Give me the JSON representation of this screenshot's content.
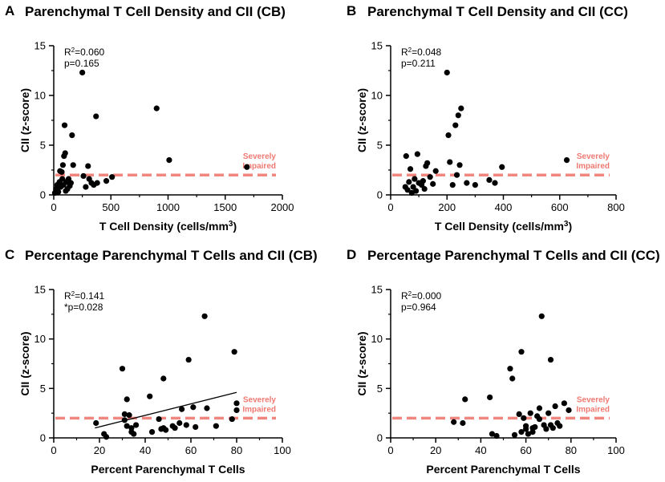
{
  "colors": {
    "points": "#000000",
    "threshold_line": "#f07a72",
    "threshold_text": "#f07a72",
    "axis": "#000000"
  },
  "chart_data": [
    {
      "panel_label": "A",
      "type": "scatter",
      "title": "Parenchymal T Cell Density and CII (CB)",
      "xlabel": "T Cell Density (cells/mm",
      "xlabel_sup": "3",
      "xlabel_end": ")",
      "ylabel": "CII (z-score)",
      "xlim": [
        0,
        2000
      ],
      "ylim": [
        0,
        15
      ],
      "xticks": [
        0,
        500,
        1000,
        1500,
        2000
      ],
      "yticks": [
        0,
        5,
        10,
        15
      ],
      "stat_r2_prefix": "R",
      "stat_r2_sup": "2",
      "stat_r2_value": "=0.060",
      "stat_p": "p=0.165",
      "threshold": 2,
      "threshold_label_1": "Severely",
      "threshold_label_2": "Impaired",
      "fit_line": null,
      "points": [
        [
          10,
          0.2
        ],
        [
          20,
          0.6
        ],
        [
          30,
          1.0
        ],
        [
          40,
          0.3
        ],
        [
          50,
          1.3
        ],
        [
          55,
          2.4
        ],
        [
          60,
          0.8
        ],
        [
          70,
          2.3
        ],
        [
          75,
          1.6
        ],
        [
          80,
          3.0
        ],
        [
          85,
          1.0
        ],
        [
          90,
          3.9
        ],
        [
          95,
          7.0
        ],
        [
          100,
          4.2
        ],
        [
          105,
          0.4
        ],
        [
          110,
          1.3
        ],
        [
          120,
          0.6
        ],
        [
          130,
          1.6
        ],
        [
          140,
          0.9
        ],
        [
          150,
          1.2
        ],
        [
          160,
          6.0
        ],
        [
          170,
          3.0
        ],
        [
          260,
          1.9
        ],
        [
          250,
          12.3
        ],
        [
          280,
          0.8
        ],
        [
          300,
          2.9
        ],
        [
          310,
          1.6
        ],
        [
          330,
          1.2
        ],
        [
          350,
          1.0
        ],
        [
          370,
          7.9
        ],
        [
          380,
          1.2
        ],
        [
          460,
          1.4
        ],
        [
          510,
          1.8
        ],
        [
          900,
          8.7
        ],
        [
          1010,
          3.5
        ],
        [
          1690,
          2.8
        ]
      ]
    },
    {
      "panel_label": "B",
      "type": "scatter",
      "title": "Parenchymal T Cell Density and CII (CC)",
      "xlabel": "T Cell Density (cells/mm",
      "xlabel_sup": "3",
      "xlabel_end": ")",
      "ylabel": "CII (z-score)",
      "xlim": [
        0,
        800
      ],
      "ylim": [
        0,
        15
      ],
      "xticks": [
        0,
        200,
        400,
        600,
        800
      ],
      "yticks": [
        0,
        5,
        10,
        15
      ],
      "stat_r2_prefix": "R",
      "stat_r2_sup": "2",
      "stat_r2_value": "=0.048",
      "stat_p": "p=0.211",
      "threshold": 2,
      "threshold_label_1": "Severely",
      "threshold_label_2": "Impaired",
      "fit_line": null,
      "points": [
        [
          52,
          0.8
        ],
        [
          55,
          3.9
        ],
        [
          60,
          0.5
        ],
        [
          65,
          1.3
        ],
        [
          70,
          2.6
        ],
        [
          75,
          0.2
        ],
        [
          80,
          0.8
        ],
        [
          85,
          1.6
        ],
        [
          90,
          0.4
        ],
        [
          95,
          4.1
        ],
        [
          100,
          1.2
        ],
        [
          110,
          1.0
        ],
        [
          115,
          1.4
        ],
        [
          120,
          0.6
        ],
        [
          125,
          2.9
        ],
        [
          130,
          3.2
        ],
        [
          140,
          1.8
        ],
        [
          150,
          1.1
        ],
        [
          160,
          2.4
        ],
        [
          200,
          12.3
        ],
        [
          205,
          6.0
        ],
        [
          210,
          3.3
        ],
        [
          220,
          1.0
        ],
        [
          230,
          7.0
        ],
        [
          235,
          2.0
        ],
        [
          240,
          8.0
        ],
        [
          245,
          3.0
        ],
        [
          250,
          8.7
        ],
        [
          270,
          1.2
        ],
        [
          300,
          1.0
        ],
        [
          350,
          1.5
        ],
        [
          370,
          1.2
        ],
        [
          395,
          2.8
        ],
        [
          625,
          3.5
        ]
      ]
    },
    {
      "panel_label": "C",
      "type": "scatter",
      "title": "Percentage Parenchymal T Cells and CII (CB)",
      "xlabel": "Percent Parenchymal T Cells",
      "xlabel_sup": "",
      "xlabel_end": "",
      "ylabel": "CII (z-score)",
      "xlim": [
        0,
        100
      ],
      "ylim": [
        0,
        15
      ],
      "xticks": [
        0,
        20,
        40,
        60,
        80,
        100
      ],
      "yticks": [
        0,
        5,
        10,
        15
      ],
      "stat_r2_prefix": "R",
      "stat_r2_sup": "2",
      "stat_r2_value": "=0.141",
      "stat_p": "*p=0.028",
      "threshold": 2,
      "threshold_label_1": "Severely",
      "threshold_label_2": "Impaired",
      "fit_line": [
        [
          18,
          1.0
        ],
        [
          80,
          4.6
        ]
      ],
      "points": [
        [
          18.5,
          1.5
        ],
        [
          22,
          0.4
        ],
        [
          23,
          0.1
        ],
        [
          30,
          7.0
        ],
        [
          31,
          1.8
        ],
        [
          31,
          2.4
        ],
        [
          32,
          1.2
        ],
        [
          32,
          3.9
        ],
        [
          33,
          2.3
        ],
        [
          34,
          1.0
        ],
        [
          34,
          0.6
        ],
        [
          35,
          0.4
        ],
        [
          36,
          1.3
        ],
        [
          42,
          4.2
        ],
        [
          43,
          0.6
        ],
        [
          46,
          1.9
        ],
        [
          47,
          0.9
        ],
        [
          48,
          1.0
        ],
        [
          48,
          6.0
        ],
        [
          49,
          0.8
        ],
        [
          52,
          1.2
        ],
        [
          53,
          1.0
        ],
        [
          55,
          1.5
        ],
        [
          56,
          2.9
        ],
        [
          58,
          1.3
        ],
        [
          59,
          7.9
        ],
        [
          61,
          3.1
        ],
        [
          62,
          1.1
        ],
        [
          66,
          12.3
        ],
        [
          67,
          3.0
        ],
        [
          71,
          1.2
        ],
        [
          78,
          1.9
        ],
        [
          79,
          8.7
        ],
        [
          80,
          3.5
        ],
        [
          80,
          2.8
        ]
      ]
    },
    {
      "panel_label": "D",
      "type": "scatter",
      "title": "Percentage Parenchymal T Cells and  CII (CC)",
      "xlabel": "Percent Parenchymal T Cells",
      "xlabel_sup": "",
      "xlabel_end": "",
      "ylabel": "CII (z-score)",
      "xlim": [
        0,
        100
      ],
      "ylim": [
        0,
        15
      ],
      "xticks": [
        0,
        20,
        40,
        60,
        80,
        100
      ],
      "yticks": [
        0,
        5,
        10,
        15
      ],
      "stat_r2_prefix": "R",
      "stat_r2_sup": "2",
      "stat_r2_value": "=0.000",
      "stat_p": "p=0.964",
      "threshold": 2,
      "threshold_label_1": "Severely",
      "threshold_label_2": "Impaired",
      "fit_line": null,
      "points": [
        [
          28,
          1.6
        ],
        [
          32,
          1.5
        ],
        [
          33,
          3.9
        ],
        [
          44,
          4.1
        ],
        [
          45,
          0.4
        ],
        [
          47,
          0.2
        ],
        [
          53,
          7.0
        ],
        [
          54,
          6.0
        ],
        [
          55,
          0.3
        ],
        [
          57,
          2.4
        ],
        [
          58,
          8.7
        ],
        [
          58,
          0.6
        ],
        [
          59,
          2.0
        ],
        [
          60,
          0.9
        ],
        [
          60,
          1.2
        ],
        [
          61,
          0.4
        ],
        [
          62,
          2.5
        ],
        [
          63,
          0.6
        ],
        [
          63,
          1.0
        ],
        [
          64,
          1.1
        ],
        [
          65,
          2.2
        ],
        [
          66,
          1.9
        ],
        [
          66,
          3.0
        ],
        [
          67,
          12.3
        ],
        [
          68,
          1.3
        ],
        [
          69,
          0.9
        ],
        [
          70,
          2.5
        ],
        [
          71,
          1.3
        ],
        [
          71,
          7.9
        ],
        [
          72,
          1.0
        ],
        [
          73,
          3.2
        ],
        [
          74,
          1.5
        ],
        [
          75,
          1.2
        ],
        [
          77,
          3.5
        ],
        [
          79,
          2.8
        ]
      ]
    }
  ]
}
